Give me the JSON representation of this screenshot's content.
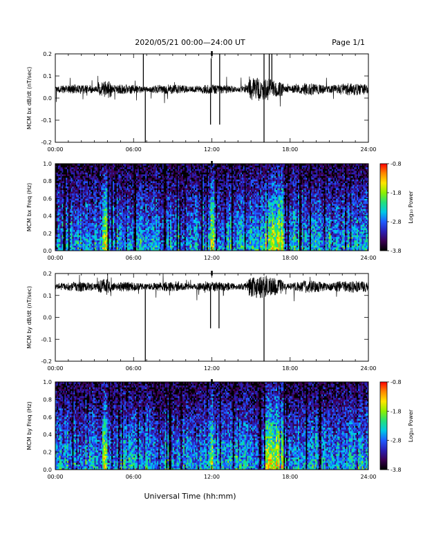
{
  "header": {
    "title": "2020/05/21  00:00—24:00 UT",
    "page": "Page 1/1"
  },
  "footer": {
    "xlabel": "Universal Time (hh:mm)"
  },
  "colors": {
    "trace": "#000000",
    "colormap": [
      "#000000",
      "#3a0052",
      "#2a1fb5",
      "#1e5bff",
      "#00c8e6",
      "#22e07a",
      "#8df000",
      "#ffe600",
      "#ff8800",
      "#ff0000"
    ]
  },
  "chart_data": [
    {
      "type": "line",
      "ylabel": "MCM bx dB/dt (nT/sec)",
      "xlim": [
        0,
        24
      ],
      "ylim": [
        -0.2,
        0.2
      ],
      "y_ticks": [
        "-0.2",
        "-0.1",
        "0.0",
        "0.1",
        "0.2"
      ],
      "x_ticks": [
        "00:00",
        "06:00",
        "12:00",
        "18:00",
        "24:00"
      ],
      "baseline": 0.04,
      "spikes": [
        {
          "x": 6.9,
          "y": -0.2
        },
        {
          "x": 6.75,
          "y": 0.2
        },
        {
          "x": 11.9,
          "y": -0.12
        },
        {
          "x": 11.95,
          "y": 0.18
        },
        {
          "x": 12.6,
          "y": -0.12
        },
        {
          "x": 12.6,
          "y": 0.2
        },
        {
          "x": 16.0,
          "y": -0.2
        },
        {
          "x": 16.0,
          "y": 0.2
        },
        {
          "x": 16.4,
          "y": 0.2
        },
        {
          "x": 16.6,
          "y": 0.2
        }
      ]
    },
    {
      "type": "heatmap",
      "ylabel": "MCM bx Freq (Hz)",
      "xlim": [
        0,
        24
      ],
      "ylim": [
        0.0,
        1.0
      ],
      "y_ticks": [
        "0.0",
        "0.2",
        "0.4",
        "0.6",
        "0.8",
        "1.0"
      ],
      "x_ticks": [
        "00:00",
        "06:00",
        "12:00",
        "18:00",
        "24:00"
      ],
      "colorbar": {
        "label": "Log₁₀ Power",
        "ticks": [
          "-0.8",
          "-1.8",
          "-2.8",
          "-3.8"
        ],
        "range": [
          -3.8,
          -0.8
        ]
      }
    },
    {
      "type": "line",
      "ylabel": "MCM by dB/dt (nT/sec)",
      "xlim": [
        0,
        24
      ],
      "ylim": [
        -0.2,
        0.2
      ],
      "y_ticks": [
        "-0.2",
        "-0.1",
        "0.0",
        "0.1",
        "0.2"
      ],
      "x_ticks": [
        "00:00",
        "06:00",
        "12:00",
        "18:00",
        "24:00"
      ],
      "baseline": 0.14,
      "spikes": [
        {
          "x": 6.9,
          "y": -0.2
        },
        {
          "x": 11.9,
          "y": -0.05
        },
        {
          "x": 12.55,
          "y": -0.05
        },
        {
          "x": 16.0,
          "y": -0.2
        }
      ]
    },
    {
      "type": "heatmap",
      "ylabel": "MCM by Freq (Hz)",
      "xlim": [
        0,
        24
      ],
      "ylim": [
        0.0,
        1.0
      ],
      "y_ticks": [
        "0.0",
        "0.2",
        "0.4",
        "0.6",
        "0.8",
        "1.0"
      ],
      "x_ticks": [
        "00:00",
        "06:00",
        "12:00",
        "18:00",
        "24:00"
      ],
      "colorbar": {
        "label": "Log₁₀ Power",
        "ticks": [
          "-0.8",
          "-1.8",
          "-2.8",
          "-3.8"
        ],
        "range": [
          -3.8,
          -0.8
        ]
      }
    }
  ]
}
